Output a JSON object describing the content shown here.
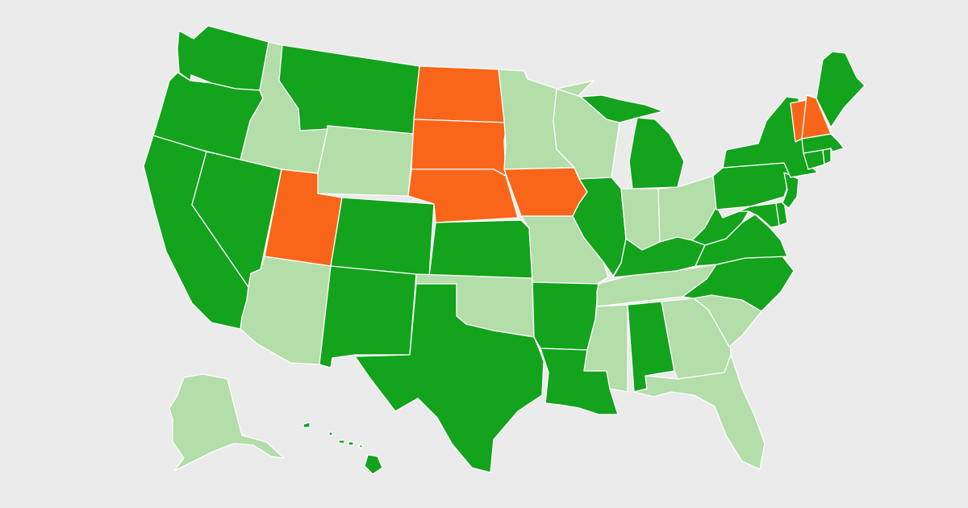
{
  "map": {
    "background": "#ebebeb",
    "border_color": "#ffffff",
    "categories": {
      "dark_green": "#13a31c",
      "light_green": "#b3dda9",
      "orange": "#fa6619"
    },
    "states": [
      {
        "id": "WA",
        "category": "dark_green"
      },
      {
        "id": "OR",
        "category": "dark_green"
      },
      {
        "id": "CA",
        "category": "dark_green"
      },
      {
        "id": "NV",
        "category": "dark_green"
      },
      {
        "id": "ID",
        "category": "light_green"
      },
      {
        "id": "MT",
        "category": "dark_green"
      },
      {
        "id": "WY",
        "category": "light_green"
      },
      {
        "id": "UT",
        "category": "orange"
      },
      {
        "id": "AZ",
        "category": "light_green"
      },
      {
        "id": "CO",
        "category": "dark_green"
      },
      {
        "id": "NM",
        "category": "dark_green"
      },
      {
        "id": "ND",
        "category": "orange"
      },
      {
        "id": "SD",
        "category": "orange"
      },
      {
        "id": "NE",
        "category": "orange"
      },
      {
        "id": "KS",
        "category": "dark_green"
      },
      {
        "id": "OK",
        "category": "light_green"
      },
      {
        "id": "TX",
        "category": "dark_green"
      },
      {
        "id": "MN",
        "category": "light_green"
      },
      {
        "id": "IA",
        "category": "orange"
      },
      {
        "id": "MO",
        "category": "light_green"
      },
      {
        "id": "AR",
        "category": "dark_green"
      },
      {
        "id": "LA",
        "category": "dark_green"
      },
      {
        "id": "WI",
        "category": "light_green"
      },
      {
        "id": "IL",
        "category": "dark_green"
      },
      {
        "id": "MI",
        "category": "dark_green"
      },
      {
        "id": "IN",
        "category": "light_green"
      },
      {
        "id": "OH",
        "category": "light_green"
      },
      {
        "id": "KY",
        "category": "dark_green"
      },
      {
        "id": "TN",
        "category": "light_green"
      },
      {
        "id": "MS",
        "category": "light_green"
      },
      {
        "id": "AL",
        "category": "dark_green"
      },
      {
        "id": "GA",
        "category": "light_green"
      },
      {
        "id": "FL",
        "category": "light_green"
      },
      {
        "id": "SC",
        "category": "light_green"
      },
      {
        "id": "NC",
        "category": "dark_green"
      },
      {
        "id": "VA",
        "category": "dark_green"
      },
      {
        "id": "WV",
        "category": "dark_green"
      },
      {
        "id": "PA",
        "category": "dark_green"
      },
      {
        "id": "NY",
        "category": "dark_green"
      },
      {
        "id": "NJ",
        "category": "dark_green"
      },
      {
        "id": "DE",
        "category": "dark_green"
      },
      {
        "id": "MD",
        "category": "dark_green"
      },
      {
        "id": "CT",
        "category": "dark_green"
      },
      {
        "id": "RI",
        "category": "dark_green"
      },
      {
        "id": "MA",
        "category": "dark_green"
      },
      {
        "id": "VT",
        "category": "orange"
      },
      {
        "id": "NH",
        "category": "orange"
      },
      {
        "id": "ME",
        "category": "dark_green"
      },
      {
        "id": "AK",
        "category": "light_green"
      },
      {
        "id": "HI",
        "category": "dark_green"
      }
    ]
  }
}
